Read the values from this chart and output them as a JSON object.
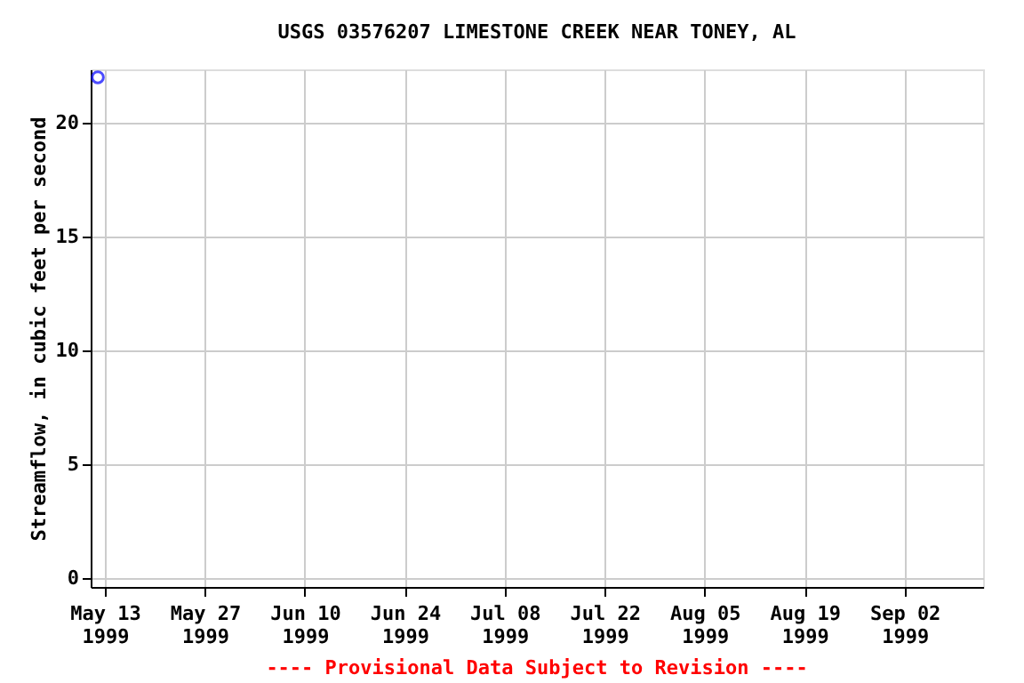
{
  "chart_data": {
    "type": "scatter",
    "title": "USGS 03576207 LIMESTONE CREEK NEAR TONEY, AL",
    "ylabel": "Streamflow, in cubic feet per second",
    "x": [
      "1999-05-12"
    ],
    "series": [
      {
        "color": "#0000ff",
        "values": [
          22.0
        ]
      }
    ],
    "marker": "circle",
    "grid": true,
    "legend": false,
    "xlim": [
      "1999-05-11",
      "1999-09-13"
    ],
    "xticks": [
      {
        "value": "1999-05-13",
        "label": "May 13\n1999"
      },
      {
        "value": "1999-05-27",
        "label": "May 27\n1999"
      },
      {
        "value": "1999-06-10",
        "label": "Jun 10\n1999"
      },
      {
        "value": "1999-06-24",
        "label": "Jun 24\n1999"
      },
      {
        "value": "1999-07-08",
        "label": "Jul 08\n1999"
      },
      {
        "value": "1999-07-22",
        "label": "Jul 22\n1999"
      },
      {
        "value": "1999-08-05",
        "label": "Aug 05\n1999"
      },
      {
        "value": "1999-08-19",
        "label": "Aug 19\n1999"
      },
      {
        "value": "1999-09-02",
        "label": "Sep 02\n1999"
      }
    ],
    "ylim": [
      -0.4,
      22.35
    ],
    "yticks": [
      0,
      5,
      10,
      15,
      20
    ],
    "annotations": [
      "---- Provisional Data Subject to Revision ----"
    ]
  }
}
